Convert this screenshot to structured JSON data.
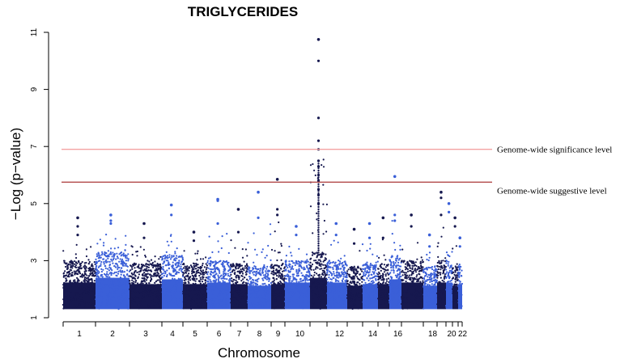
{
  "chart_data": {
    "type": "scatter",
    "subtype": "manhattan",
    "title": "TRIGLYCERIDES",
    "xlabel": "Chromosome",
    "ylabel": "−Log (p−value)",
    "ylim": [
      1,
      11
    ],
    "y_ticks": [
      "1",
      "3",
      "5",
      "7",
      "9",
      "11"
    ],
    "x_tick_labels": [
      "1",
      "2",
      "3",
      "4",
      "5",
      "6",
      "7",
      "8",
      "9",
      "10",
      "12",
      "14",
      "16",
      "18",
      "20",
      "22"
    ],
    "grid": false,
    "colors": {
      "odd_chromosome": "#16184f",
      "even_chromosome": "#3a5fd8",
      "significance_line": "#f4a3a3",
      "suggestive_line": "#b24a4a"
    },
    "reference_lines": [
      {
        "name": "Genome-wide significance level",
        "y": 6.9
      },
      {
        "name": "Genome-wide suggestive level",
        "y": 5.75
      }
    ],
    "chromosomes": [
      {
        "chr": 1,
        "baseline_max": 3.0,
        "peak": 4.5,
        "top_points": [
          3.9,
          4.2
        ]
      },
      {
        "chr": 2,
        "baseline_max": 3.3,
        "peak": 4.6,
        "top_points": [
          4.3,
          4.4
        ]
      },
      {
        "chr": 3,
        "baseline_max": 2.9,
        "peak": 4.3,
        "top_points": [
          3.8
        ]
      },
      {
        "chr": 4,
        "baseline_max": 3.2,
        "peak": 4.95,
        "top_points": [
          4.6
        ]
      },
      {
        "chr": 5,
        "baseline_max": 2.9,
        "peak": 4.0,
        "top_points": [
          3.7
        ]
      },
      {
        "chr": 6,
        "baseline_max": 3.0,
        "peak": 5.15,
        "top_points": [
          5.1,
          4.3
        ]
      },
      {
        "chr": 7,
        "baseline_max": 2.9,
        "peak": 4.8,
        "top_points": [
          4.0
        ]
      },
      {
        "chr": 8,
        "baseline_max": 2.8,
        "peak": 5.4,
        "top_points": [
          4.5
        ]
      },
      {
        "chr": 9,
        "baseline_max": 2.9,
        "peak": 5.85,
        "top_points": [
          4.8,
          4.6
        ]
      },
      {
        "chr": 10,
        "baseline_max": 3.0,
        "peak": 4.2,
        "top_points": [
          3.9
        ]
      },
      {
        "chr": 11,
        "baseline_max": 3.3,
        "peak": 10.75,
        "top_points": [
          10.0,
          8.0,
          7.2,
          6.9,
          6.5,
          6.3,
          6.0,
          5.8,
          5.5,
          5.3,
          5.0
        ]
      },
      {
        "chr": 12,
        "baseline_max": 3.0,
        "peak": 4.3,
        "top_points": [
          3.9
        ]
      },
      {
        "chr": 13,
        "baseline_max": 2.8,
        "peak": 4.1,
        "top_points": [
          3.6
        ]
      },
      {
        "chr": 14,
        "baseline_max": 2.9,
        "peak": 4.3,
        "top_points": [
          3.8
        ]
      },
      {
        "chr": 15,
        "baseline_max": 2.9,
        "peak": 4.5,
        "top_points": [
          3.8
        ]
      },
      {
        "chr": 16,
        "baseline_max": 3.2,
        "peak": 5.95,
        "top_points": [
          4.6,
          4.4
        ]
      },
      {
        "chr": 17,
        "baseline_max": 3.0,
        "peak": 4.6,
        "top_points": [
          4.2
        ]
      },
      {
        "chr": 18,
        "baseline_max": 2.8,
        "peak": 3.9,
        "top_points": [
          3.5
        ]
      },
      {
        "chr": 19,
        "baseline_max": 3.0,
        "peak": 5.4,
        "top_points": [
          5.2,
          4.6
        ]
      },
      {
        "chr": 20,
        "baseline_max": 3.0,
        "peak": 5.0,
        "top_points": [
          4.7
        ]
      },
      {
        "chr": 21,
        "baseline_max": 2.8,
        "peak": 4.5,
        "top_points": [
          4.2
        ]
      },
      {
        "chr": 22,
        "baseline_max": 2.9,
        "peak": 3.8,
        "top_points": [
          3.5
        ]
      }
    ]
  }
}
